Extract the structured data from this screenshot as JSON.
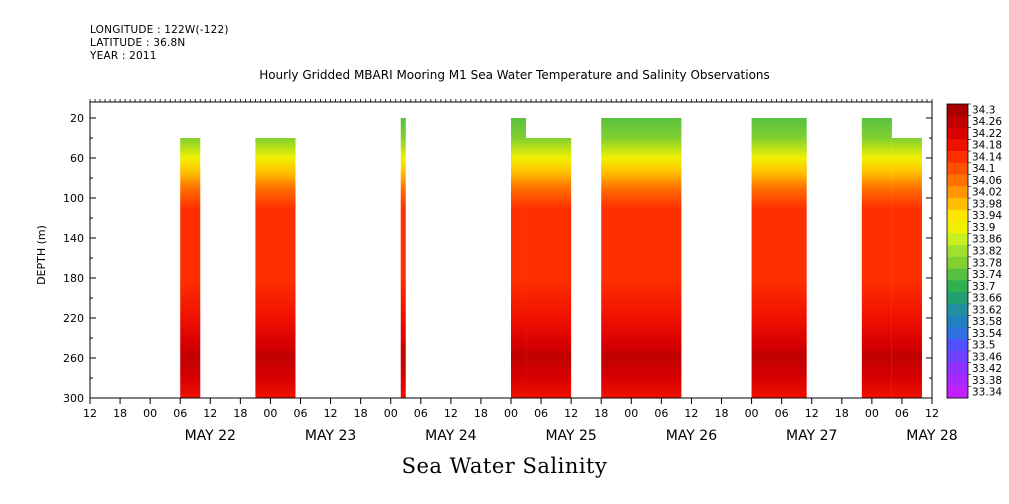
{
  "header": {
    "longitude": "LONGITUDE : 122W(-122)",
    "latitude": "LATITUDE : 36.8N",
    "year": "YEAR : 2011"
  },
  "chart_data": {
    "type": "heatmap",
    "title": "Hourly Gridded MBARI Mooring M1 Sea Water Temperature and Salinity Observations",
    "bottom_title": "Sea Water Salinity",
    "xlabel": "",
    "ylabel": "DEPTH (m)",
    "y_ticks": [
      "20",
      "60",
      "100",
      "140",
      "180",
      "220",
      "260",
      "300"
    ],
    "ylim": [
      300,
      4
    ],
    "y_reversed": true,
    "x_hour_ticks": [
      "00",
      "06",
      "12",
      "18"
    ],
    "x_day_labels": [
      "MAY 22",
      "MAY 23",
      "MAY 24",
      "MAY 25",
      "MAY 26",
      "MAY 27",
      "MAY 28"
    ],
    "x_range_hours": [
      -12,
      156
    ],
    "colorbar": {
      "levels": [
        "34.3",
        "34.26",
        "34.22",
        "34.18",
        "34.14",
        "34.1",
        "34.06",
        "34.02",
        "33.98",
        "33.94",
        "33.9",
        "33.86",
        "33.82",
        "33.78",
        "33.74",
        "33.7",
        "33.66",
        "33.62",
        "33.58",
        "33.54",
        "33.5",
        "33.46",
        "33.42",
        "33.38",
        "33.34"
      ],
      "colors": [
        "#a80000",
        "#c00000",
        "#d80000",
        "#f01000",
        "#ff3000",
        "#ff5000",
        "#ff7000",
        "#ff9600",
        "#ffbe00",
        "#ffe600",
        "#f0f000",
        "#c8f020",
        "#a0e030",
        "#80d030",
        "#58c040",
        "#30b050",
        "#20a070",
        "#2090a0",
        "#2080c0",
        "#3070e0",
        "#5050ff",
        "#7040ff",
        "#9030ff",
        "#a828ff",
        "#c020ff"
      ]
    },
    "segments": [
      {
        "start_hour": 6,
        "end_hour": 10,
        "top_depth": 40,
        "bottom_depth": 300
      },
      {
        "start_hour": 21,
        "end_hour": 29,
        "top_depth": 40,
        "bottom_depth": 300
      },
      {
        "start_hour": 50,
        "end_hour": 51,
        "top_depth": 20,
        "bottom_depth": 300
      },
      {
        "start_hour": 72,
        "end_hour": 75,
        "top_depth": 20,
        "bottom_depth": 300
      },
      {
        "start_hour": 75,
        "end_hour": 84,
        "top_depth": 40,
        "bottom_depth": 300
      },
      {
        "start_hour": 90,
        "end_hour": 106,
        "top_depth": 20,
        "bottom_depth": 300
      },
      {
        "start_hour": 120,
        "end_hour": 131,
        "top_depth": 20,
        "bottom_depth": 300
      },
      {
        "start_hour": 142,
        "end_hour": 148,
        "top_depth": 20,
        "bottom_depth": 300
      },
      {
        "start_hour": 148,
        "end_hour": 154,
        "top_depth": 40,
        "bottom_depth": 300
      }
    ],
    "salinity_profile": [
      {
        "depth": 20,
        "value": 33.72
      },
      {
        "depth": 40,
        "value": 33.76
      },
      {
        "depth": 60,
        "value": 33.86
      },
      {
        "depth": 75,
        "value": 33.96
      },
      {
        "depth": 90,
        "value": 34.04
      },
      {
        "depth": 110,
        "value": 34.1
      },
      {
        "depth": 140,
        "value": 34.12
      },
      {
        "depth": 180,
        "value": 34.13
      },
      {
        "depth": 220,
        "value": 34.16
      },
      {
        "depth": 245,
        "value": 34.2
      },
      {
        "depth": 260,
        "value": 34.24
      },
      {
        "depth": 280,
        "value": 34.2
      },
      {
        "depth": 300,
        "value": 34.16
      }
    ]
  }
}
